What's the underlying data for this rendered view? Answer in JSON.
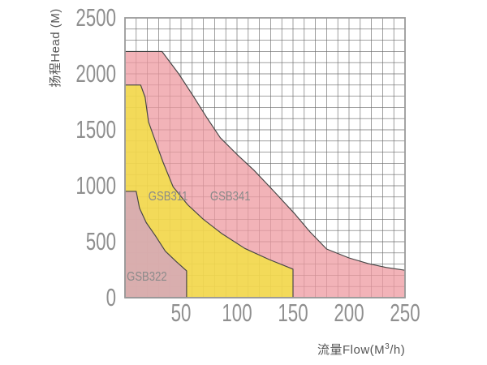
{
  "page": {
    "background": "#ffffff"
  },
  "chart_data": {
    "type": "area",
    "title": "",
    "xlabel": "流量Flow(M³/h)",
    "xlabel_parts": {
      "pre": "流量Flow(M",
      "sup": "3",
      "post": "/h)"
    },
    "ylabel": "扬程Head (M)",
    "xlim": [
      0,
      250
    ],
    "ylim": [
      0,
      2500
    ],
    "x_ticks": [
      50,
      100,
      150,
      200,
      250
    ],
    "y_ticks": [
      0,
      500,
      1000,
      1500,
      2000,
      2500
    ],
    "x_grid_step": 10,
    "y_grid_step": 100,
    "grid": "on",
    "legend_position": "labels-inside-regions",
    "colors": {
      "grid": "#6b6b6b",
      "border": "#9a9a9a",
      "region_outline": "#454545",
      "tick_label": "#8f8f8f",
      "series_label": "#8a8a8a",
      "axis_title": "#555555"
    },
    "series": [
      {
        "name": "GSB341",
        "fill": "rgba(238,154,160,0.75)",
        "max_head_m": 2200,
        "max_flow_m3h": 250,
        "label_pos": [
          94,
          905
        ],
        "boundary": [
          [
            0,
            2200
          ],
          [
            33,
            2200
          ],
          [
            48,
            2000
          ],
          [
            61,
            1800
          ],
          [
            73,
            1610
          ],
          [
            85,
            1430
          ],
          [
            100,
            1280
          ],
          [
            115,
            1140
          ],
          [
            133,
            950
          ],
          [
            151,
            755
          ],
          [
            165,
            590
          ],
          [
            180,
            435
          ],
          [
            200,
            355
          ],
          [
            217,
            305
          ],
          [
            233,
            270
          ],
          [
            250,
            245
          ],
          [
            250,
            0
          ],
          [
            0,
            0
          ]
        ]
      },
      {
        "name": "GSB311",
        "fill": "rgba(242,233,52,0.72)",
        "max_head_m": 1900,
        "max_flow_m3h": 150,
        "label_pos": [
          38.5,
          905
        ],
        "boundary": [
          [
            0,
            1900
          ],
          [
            14,
            1900
          ],
          [
            18,
            1790
          ],
          [
            21,
            1570
          ],
          [
            26,
            1430
          ],
          [
            34,
            1210
          ],
          [
            43,
            990
          ],
          [
            56,
            830
          ],
          [
            70,
            700
          ],
          [
            86,
            575
          ],
          [
            107,
            440
          ],
          [
            129,
            340
          ],
          [
            150,
            255
          ],
          [
            150,
            0
          ],
          [
            0,
            0
          ]
        ]
      },
      {
        "name": "GSB322",
        "fill": "rgba(208,159,203,0.75)",
        "max_head_m": 950,
        "max_flow_m3h": 55,
        "label_pos": [
          19.5,
          190
        ],
        "boundary": [
          [
            0,
            950
          ],
          [
            10,
            950
          ],
          [
            13,
            800
          ],
          [
            19,
            670
          ],
          [
            27,
            555
          ],
          [
            36,
            415
          ],
          [
            46,
            320
          ],
          [
            55,
            240
          ],
          [
            55,
            0
          ],
          [
            0,
            0
          ]
        ]
      }
    ]
  }
}
